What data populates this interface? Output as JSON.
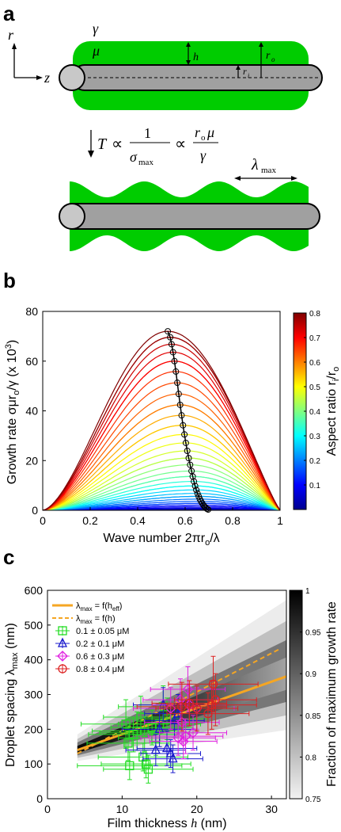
{
  "panels": {
    "a": "a",
    "b": "b",
    "c": "c"
  },
  "schematic": {
    "axis_r": "r",
    "axis_z": "z",
    "gamma": "γ",
    "mu": "μ",
    "h": "h",
    "r_o": "r",
    "r_o_sub": "o",
    "r_i": "r",
    "r_i_sub": "i",
    "T": "T",
    "propto": "∝",
    "one": "1",
    "sigma_max": "σ",
    "sigma_max_sub": "max",
    "r_o_mu": "r",
    "r_o_mu_sub": "o",
    "mu2": "μ",
    "gamma2": "γ",
    "lambda_max": "λ",
    "lambda_max_sub": "max",
    "colors": {
      "liquid": "#00cc00",
      "fiber": "#a0a0a0",
      "fiber_end": "#c8c8c8"
    }
  },
  "chart_data": [
    {
      "type": "line",
      "ylabel_main": "Growth rate σμr",
      "ylabel_sub_o": "o",
      "ylabel_tail": "/γ  (x 10",
      "ylabel_exp": "3",
      "ylabel_end": ")",
      "xlabel_main": "Wave number 2πr",
      "xlabel_sub": "o",
      "xlabel_tail": "/λ",
      "xlim": [
        0,
        1
      ],
      "ylim": [
        0,
        80
      ],
      "xticks": [
        "0",
        "0.2",
        "0.4",
        "0.6",
        "0.8",
        "1"
      ],
      "yticks": [
        "0",
        "20",
        "40",
        "60",
        "80"
      ],
      "colorbar": {
        "label_main": "Aspect ratio  r",
        "label_sub_i": "i",
        "label_tail": "/r",
        "label_sub_o": "o",
        "range": [
          0,
          0.8
        ],
        "ticks": [
          "0.1",
          "0.2",
          "0.3",
          "0.4",
          "0.5",
          "0.6",
          "0.7",
          "0.8"
        ],
        "colormap": "jet"
      },
      "series_aspect_ratios": [
        0.0,
        0.02,
        0.04,
        0.06,
        0.08,
        0.1,
        0.12,
        0.14,
        0.16,
        0.18,
        0.2,
        0.22,
        0.24,
        0.26,
        0.28,
        0.3,
        0.32,
        0.34,
        0.36,
        0.38,
        0.4,
        0.42,
        0.44,
        0.46,
        0.48,
        0.5,
        0.52,
        0.54,
        0.56,
        0.58,
        0.6,
        0.62,
        0.64,
        0.66,
        0.68,
        0.7,
        0.72,
        0.74,
        0.76,
        0.78,
        0.8
      ],
      "maxima": {
        "x": [
          0.697,
          0.692,
          0.687,
          0.682,
          0.677,
          0.672,
          0.667,
          0.662,
          0.657,
          0.652,
          0.647,
          0.642,
          0.637,
          0.632,
          0.627,
          0.621,
          0.615,
          0.609,
          0.603,
          0.597,
          0.591,
          0.585,
          0.579,
          0.573,
          0.567,
          0.561,
          0.555,
          0.549,
          0.543,
          0.537,
          0.527
        ],
        "y": [
          0.3,
          0.6,
          1.0,
          1.5,
          2.1,
          2.8,
          3.6,
          4.5,
          5.6,
          6.8,
          8.2,
          9.8,
          11.6,
          13.6,
          15.8,
          18.3,
          21.0,
          23.9,
          27.1,
          30.5,
          34.2,
          38.2,
          42.4,
          46.8,
          51.3,
          55.8,
          60.0,
          63.6,
          66.8,
          69.6,
          72.0
        ]
      }
    },
    {
      "type": "scatter",
      "xlabel_main": "Film thickness ",
      "xlabel_it": "h",
      "xlabel_unit": " (nm)",
      "ylabel_main": "Droplet spacing  λ",
      "ylabel_sub": "max",
      "ylabel_unit": " (nm)",
      "xlim": [
        0,
        32
      ],
      "ylim": [
        0,
        600
      ],
      "xticks": [
        "0",
        "10",
        "20",
        "30"
      ],
      "yticks": [
        "0",
        "100",
        "200",
        "300",
        "400",
        "500",
        "600"
      ],
      "colorbar": {
        "label": "Fraction of maximum growth rate",
        "range": [
          0.75,
          1
        ],
        "ticks": [
          "0.75",
          "0.8",
          "0.85",
          "0.9",
          "0.95",
          "1"
        ],
        "colormap": "gray"
      },
      "lines": [
        {
          "name": "λ",
          "name_sub": "max",
          "name_tail": " = f(h",
          "name_sub2": "eff",
          "name_end": ")",
          "style": "solid",
          "color": "#f5a623",
          "x": [
            4,
            32
          ],
          "y": [
            140,
            352
          ]
        },
        {
          "name": "λ",
          "name_sub": "max",
          "name_tail": " = f(h)",
          "style": "dashed",
          "color": "#f5a623",
          "x": [
            4,
            31
          ],
          "y": [
            130,
            430
          ]
        }
      ],
      "series": [
        {
          "name": "0.1 ± 0.05 μM",
          "color": "#22dd22",
          "marker": "square",
          "points": [
            [
              10.5,
              215,
              60,
              70
            ],
            [
              11,
              95,
              70,
              40
            ],
            [
              10.8,
              160,
              55,
              50
            ],
            [
              12,
              195,
              60,
              55
            ],
            [
              12.5,
              235,
              50,
              60
            ],
            [
              13,
              190,
              60,
              55
            ],
            [
              13.5,
              85,
              60,
              40
            ],
            [
              12.8,
              120,
              60,
              40
            ],
            [
              14,
              205,
              55,
              50
            ],
            [
              15,
              215,
              55,
              55
            ],
            [
              15.5,
              265,
              60,
              60
            ],
            [
              13.2,
              100,
              60,
              40
            ],
            [
              11.5,
              185,
              60,
              50
            ],
            [
              16,
              230,
              55,
              60
            ],
            [
              14.5,
              175,
              50,
              50
            ]
          ]
        },
        {
          "name": "0.2 ± 0.1 μM",
          "color": "#1a1acc",
          "marker": "triangle",
          "points": [
            [
              15.5,
              270,
              40,
              50
            ],
            [
              16,
              145,
              40,
              50
            ],
            [
              16.5,
              130,
              40,
              40
            ],
            [
              17,
              225,
              40,
              50
            ],
            [
              15,
              200,
              50,
              50
            ],
            [
              16.8,
              115,
              40,
              40
            ],
            [
              14.5,
              140,
              40,
              45
            ],
            [
              17.5,
              245,
              45,
              55
            ]
          ]
        },
        {
          "name": "0.6 ± 0.3 μM",
          "color": "#e020e0",
          "marker": "diamond",
          "points": [
            [
              16.5,
              260,
              50,
              60
            ],
            [
              18,
              220,
              50,
              60
            ],
            [
              18.5,
              180,
              50,
              50
            ],
            [
              19,
              270,
              50,
              60
            ],
            [
              17.5,
              175,
              50,
              50
            ],
            [
              18.2,
              165,
              45,
              50
            ],
            [
              19.5,
              190,
              45,
              50
            ],
            [
              20,
              260,
              50,
              60
            ],
            [
              18.8,
              315,
              50,
              65
            ],
            [
              17.8,
              285,
              50,
              60
            ]
          ]
        },
        {
          "name": "0.8 ± 0.4 μM",
          "color": "#dd2222",
          "marker": "circle",
          "points": [
            [
              18,
              265,
              60,
              70
            ],
            [
              19,
              275,
              50,
              65
            ],
            [
              22,
              270,
              60,
              70
            ],
            [
              22.2,
              330,
              60,
              80
            ],
            [
              20,
              260,
              55,
              65
            ],
            [
              21.5,
              245,
              55,
              60
            ],
            [
              22.5,
              285,
              55,
              75
            ]
          ]
        }
      ]
    }
  ]
}
